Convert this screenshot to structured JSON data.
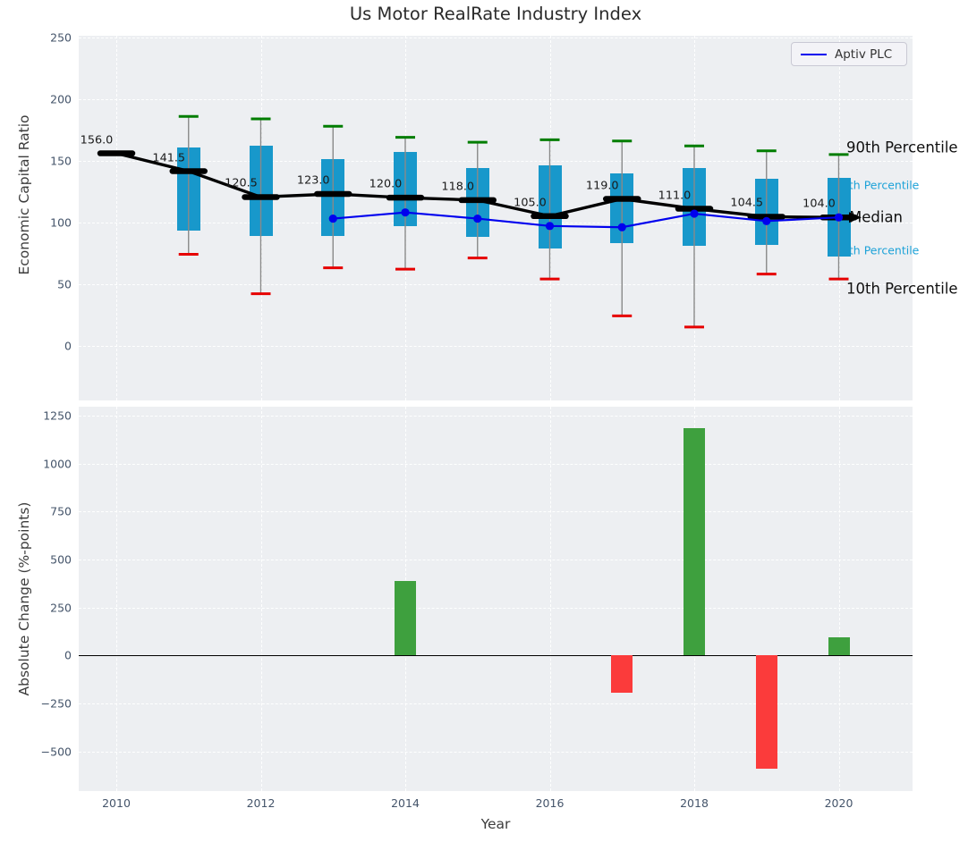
{
  "figure": {
    "title": "Us Motor RealRate Industry Index",
    "xlabel": "Year"
  },
  "legend": {
    "entries": [
      {
        "label": "Aptiv PLC",
        "color": "#0000ee"
      }
    ]
  },
  "right_labels": {
    "p90": "90th Percentile",
    "p75": "75th Percentile",
    "median": "Median",
    "p25": "25th Percentile",
    "p10": "10th Percentile"
  },
  "colors": {
    "axes_bg": "#edeff2",
    "box": "#1898cb",
    "cap_top": "#007d00",
    "cap_bottom": "#e60000",
    "median_line": "#000000",
    "aptiv_line": "#0000ee",
    "bar_positive": "#3ea03e",
    "bar_negative": "#fb3b3b",
    "percentile_text": "#1da2d8",
    "stem": "#898989"
  },
  "chart_data": [
    {
      "type": "boxplot+line",
      "title": "Us Motor RealRate Industry Index",
      "ylabel": "Economic Capital Ratio",
      "ylim": [
        -45,
        252
      ],
      "yticks": [
        0,
        50,
        100,
        150,
        200,
        250
      ],
      "xticks": [
        2010,
        2012,
        2014,
        2016,
        2018,
        2020
      ],
      "grid": true,
      "legend_position": "upper right",
      "years": [
        2010,
        2011,
        2012,
        2013,
        2014,
        2015,
        2016,
        2017,
        2018,
        2019,
        2020
      ],
      "median": [
        156.0,
        141.5,
        120.5,
        123.0,
        120.0,
        118.0,
        105.0,
        119.0,
        111.0,
        104.5,
        104.0
      ],
      "median_labels": [
        "156.0",
        "141.5",
        "120.5",
        "123.0",
        "120.0",
        "118.0",
        "105.0",
        "119.0",
        "111.0",
        "104.5",
        "104.0"
      ],
      "p90": [
        null,
        186,
        184,
        178,
        169,
        165,
        167,
        166,
        162,
        158,
        155
      ],
      "p75": [
        null,
        161,
        162,
        151,
        157,
        144,
        146,
        140,
        144,
        135,
        136
      ],
      "p25": [
        null,
        93,
        89,
        89,
        97,
        88,
        79,
        83,
        81,
        82,
        72
      ],
      "p10": [
        null,
        74,
        42,
        63,
        62,
        71,
        54,
        24,
        15,
        58,
        54
      ],
      "series": [
        {
          "name": "Aptiv PLC",
          "x": [
            2013,
            2014,
            2015,
            2016,
            2017,
            2018,
            2019,
            2020
          ],
          "y": [
            103,
            108,
            103,
            97,
            96,
            107,
            101,
            104
          ]
        }
      ]
    },
    {
      "type": "bar",
      "ylabel": "Absolute Change (%-points)",
      "xlabel": "Year",
      "ylim": [
        -700,
        1295
      ],
      "yticks": [
        -500,
        -250,
        0,
        250,
        500,
        750,
        1000,
        1250
      ],
      "xticks": [
        2010,
        2012,
        2014,
        2016,
        2018,
        2020
      ],
      "grid": true,
      "categories": [
        2014,
        2017,
        2018,
        2019,
        2020
      ],
      "values": [
        390,
        -195,
        1185,
        -590,
        95
      ]
    }
  ]
}
